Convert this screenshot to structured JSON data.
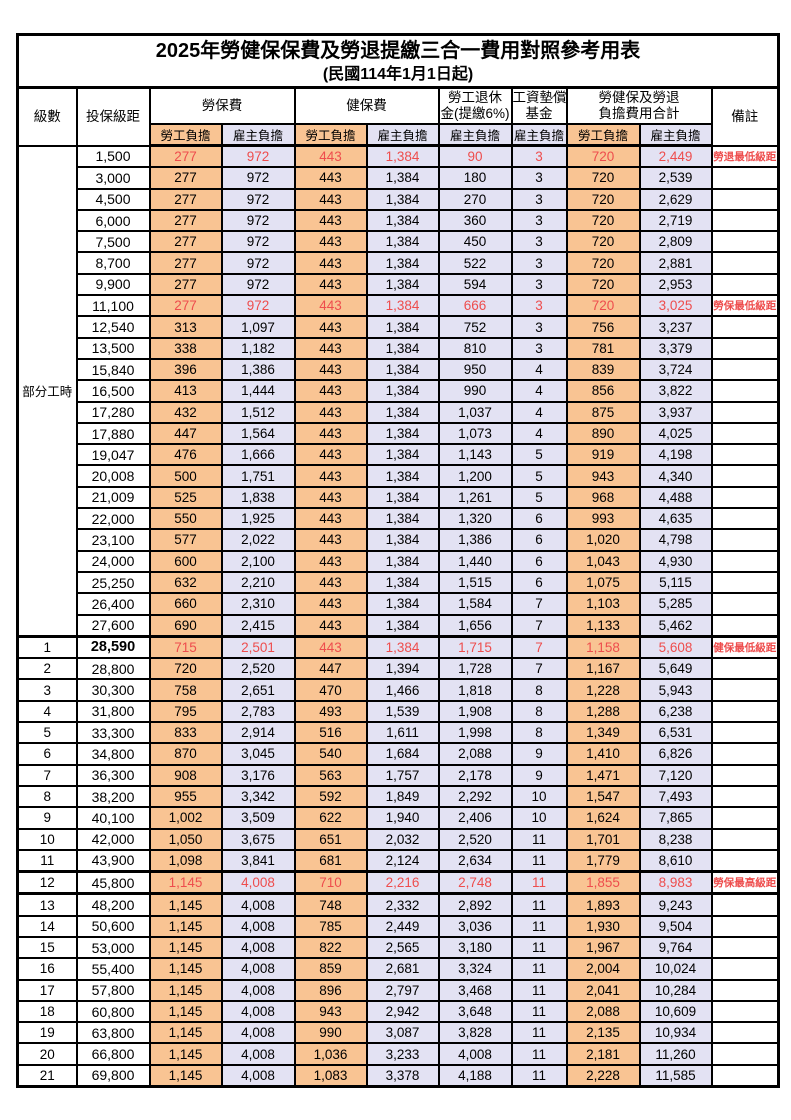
{
  "title": "2025年勞健保保費及勞退提繳三合一費用對照參考用表",
  "subtitle": "(民國114年1月1日起)",
  "header": {
    "level": "級數",
    "bracket": "投保級距",
    "labor_insurance": "勞保費",
    "health_insurance": "健保費",
    "pension_line1": "勞工退休",
    "pension_line2": "金(提繳6%)",
    "wage_fund_line1": "工資墊償",
    "wage_fund_line2": "基金",
    "total_line1": "勞健保及勞退",
    "total_line2": "負擔費用合計",
    "remark": "備註",
    "employee_label": "勞工負擔",
    "employer_label": "雇主負擔"
  },
  "part_time_label": "部分工時",
  "colors": {
    "employee_bg": "#F9C493",
    "employer_bg": "#E3E2F3",
    "highlight_red": "#EE4D4D",
    "border": "#000000"
  },
  "rows": [
    {
      "level": "",
      "bracket": "1,500",
      "values": [
        "277",
        "972",
        "443",
        "1,384",
        "90",
        "3",
        "720",
        "2,449"
      ],
      "note": "勞退最低級距",
      "red": true
    },
    {
      "level": "",
      "bracket": "3,000",
      "values": [
        "277",
        "972",
        "443",
        "1,384",
        "180",
        "3",
        "720",
        "2,539"
      ],
      "note": ""
    },
    {
      "level": "",
      "bracket": "4,500",
      "values": [
        "277",
        "972",
        "443",
        "1,384",
        "270",
        "3",
        "720",
        "2,629"
      ],
      "note": ""
    },
    {
      "level": "",
      "bracket": "6,000",
      "values": [
        "277",
        "972",
        "443",
        "1,384",
        "360",
        "3",
        "720",
        "2,719"
      ],
      "note": ""
    },
    {
      "level": "",
      "bracket": "7,500",
      "values": [
        "277",
        "972",
        "443",
        "1,384",
        "450",
        "3",
        "720",
        "2,809"
      ],
      "note": ""
    },
    {
      "level": "",
      "bracket": "8,700",
      "values": [
        "277",
        "972",
        "443",
        "1,384",
        "522",
        "3",
        "720",
        "2,881"
      ],
      "note": ""
    },
    {
      "level": "",
      "bracket": "9,900",
      "values": [
        "277",
        "972",
        "443",
        "1,384",
        "594",
        "3",
        "720",
        "2,953"
      ],
      "note": ""
    },
    {
      "level": "",
      "bracket": "11,100",
      "values": [
        "277",
        "972",
        "443",
        "1,384",
        "666",
        "3",
        "720",
        "3,025"
      ],
      "note": "勞保最低級距",
      "red": true
    },
    {
      "level": "",
      "bracket": "12,540",
      "values": [
        "313",
        "1,097",
        "443",
        "1,384",
        "752",
        "3",
        "756",
        "3,237"
      ],
      "note": ""
    },
    {
      "level": "",
      "bracket": "13,500",
      "values": [
        "338",
        "1,182",
        "443",
        "1,384",
        "810",
        "3",
        "781",
        "3,379"
      ],
      "note": ""
    },
    {
      "level": "",
      "bracket": "15,840",
      "values": [
        "396",
        "1,386",
        "443",
        "1,384",
        "950",
        "4",
        "839",
        "3,724"
      ],
      "note": ""
    },
    {
      "level": "",
      "bracket": "16,500",
      "values": [
        "413",
        "1,444",
        "443",
        "1,384",
        "990",
        "4",
        "856",
        "3,822"
      ],
      "note": ""
    },
    {
      "level": "",
      "bracket": "17,280",
      "values": [
        "432",
        "1,512",
        "443",
        "1,384",
        "1,037",
        "4",
        "875",
        "3,937"
      ],
      "note": ""
    },
    {
      "level": "",
      "bracket": "17,880",
      "values": [
        "447",
        "1,564",
        "443",
        "1,384",
        "1,073",
        "4",
        "890",
        "4,025"
      ],
      "note": ""
    },
    {
      "level": "",
      "bracket": "19,047",
      "values": [
        "476",
        "1,666",
        "443",
        "1,384",
        "1,143",
        "5",
        "919",
        "4,198"
      ],
      "note": ""
    },
    {
      "level": "",
      "bracket": "20,008",
      "values": [
        "500",
        "1,751",
        "443",
        "1,384",
        "1,200",
        "5",
        "943",
        "4,340"
      ],
      "note": ""
    },
    {
      "level": "",
      "bracket": "21,009",
      "values": [
        "525",
        "1,838",
        "443",
        "1,384",
        "1,261",
        "5",
        "968",
        "4,488"
      ],
      "note": ""
    },
    {
      "level": "",
      "bracket": "22,000",
      "values": [
        "550",
        "1,925",
        "443",
        "1,384",
        "1,320",
        "6",
        "993",
        "4,635"
      ],
      "note": ""
    },
    {
      "level": "",
      "bracket": "23,100",
      "values": [
        "577",
        "2,022",
        "443",
        "1,384",
        "1,386",
        "6",
        "1,020",
        "4,798"
      ],
      "note": ""
    },
    {
      "level": "",
      "bracket": "24,000",
      "values": [
        "600",
        "2,100",
        "443",
        "1,384",
        "1,440",
        "6",
        "1,043",
        "4,930"
      ],
      "note": ""
    },
    {
      "level": "",
      "bracket": "25,250",
      "values": [
        "632",
        "2,210",
        "443",
        "1,384",
        "1,515",
        "6",
        "1,075",
        "5,115"
      ],
      "note": ""
    },
    {
      "level": "",
      "bracket": "26,400",
      "values": [
        "660",
        "2,310",
        "443",
        "1,384",
        "1,584",
        "7",
        "1,103",
        "5,285"
      ],
      "note": ""
    },
    {
      "level": "",
      "bracket": "27,600",
      "values": [
        "690",
        "2,415",
        "443",
        "1,384",
        "1,656",
        "7",
        "1,133",
        "5,462"
      ],
      "note": ""
    },
    {
      "level": "1",
      "bracket": "28,590",
      "values": [
        "715",
        "2,501",
        "443",
        "1,384",
        "1,715",
        "7",
        "1,158",
        "5,608"
      ],
      "note": "健保最低級距",
      "red": true,
      "thick": "top",
      "bold_bracket": true
    },
    {
      "level": "2",
      "bracket": "28,800",
      "values": [
        "720",
        "2,520",
        "447",
        "1,394",
        "1,728",
        "7",
        "1,167",
        "5,649"
      ],
      "note": ""
    },
    {
      "level": "3",
      "bracket": "30,300",
      "values": [
        "758",
        "2,651",
        "470",
        "1,466",
        "1,818",
        "8",
        "1,228",
        "5,943"
      ],
      "note": ""
    },
    {
      "level": "4",
      "bracket": "31,800",
      "values": [
        "795",
        "2,783",
        "493",
        "1,539",
        "1,908",
        "8",
        "1,288",
        "6,238"
      ],
      "note": ""
    },
    {
      "level": "5",
      "bracket": "33,300",
      "values": [
        "833",
        "2,914",
        "516",
        "1,611",
        "1,998",
        "8",
        "1,349",
        "6,531"
      ],
      "note": ""
    },
    {
      "level": "6",
      "bracket": "34,800",
      "values": [
        "870",
        "3,045",
        "540",
        "1,684",
        "2,088",
        "9",
        "1,410",
        "6,826"
      ],
      "note": ""
    },
    {
      "level": "7",
      "bracket": "36,300",
      "values": [
        "908",
        "3,176",
        "563",
        "1,757",
        "2,178",
        "9",
        "1,471",
        "7,120"
      ],
      "note": ""
    },
    {
      "level": "8",
      "bracket": "38,200",
      "values": [
        "955",
        "3,342",
        "592",
        "1,849",
        "2,292",
        "10",
        "1,547",
        "7,493"
      ],
      "note": ""
    },
    {
      "level": "9",
      "bracket": "40,100",
      "values": [
        "1,002",
        "3,509",
        "622",
        "1,940",
        "2,406",
        "10",
        "1,624",
        "7,865"
      ],
      "note": ""
    },
    {
      "level": "10",
      "bracket": "42,000",
      "values": [
        "1,050",
        "3,675",
        "651",
        "2,032",
        "2,520",
        "11",
        "1,701",
        "8,238"
      ],
      "note": ""
    },
    {
      "level": "11",
      "bracket": "43,900",
      "values": [
        "1,098",
        "3,841",
        "681",
        "2,124",
        "2,634",
        "11",
        "1,779",
        "8,610"
      ],
      "note": ""
    },
    {
      "level": "12",
      "bracket": "45,800",
      "values": [
        "1,145",
        "4,008",
        "710",
        "2,216",
        "2,748",
        "11",
        "1,855",
        "8,983"
      ],
      "note": "勞保最高級距",
      "red": true,
      "thick": "both"
    },
    {
      "level": "13",
      "bracket": "48,200",
      "values": [
        "1,145",
        "4,008",
        "748",
        "2,332",
        "2,892",
        "11",
        "1,893",
        "9,243"
      ],
      "note": ""
    },
    {
      "level": "14",
      "bracket": "50,600",
      "values": [
        "1,145",
        "4,008",
        "785",
        "2,449",
        "3,036",
        "11",
        "1,930",
        "9,504"
      ],
      "note": ""
    },
    {
      "level": "15",
      "bracket": "53,000",
      "values": [
        "1,145",
        "4,008",
        "822",
        "2,565",
        "3,180",
        "11",
        "1,967",
        "9,764"
      ],
      "note": ""
    },
    {
      "level": "16",
      "bracket": "55,400",
      "values": [
        "1,145",
        "4,008",
        "859",
        "2,681",
        "3,324",
        "11",
        "2,004",
        "10,024"
      ],
      "note": ""
    },
    {
      "level": "17",
      "bracket": "57,800",
      "values": [
        "1,145",
        "4,008",
        "896",
        "2,797",
        "3,468",
        "11",
        "2,041",
        "10,284"
      ],
      "note": ""
    },
    {
      "level": "18",
      "bracket": "60,800",
      "values": [
        "1,145",
        "4,008",
        "943",
        "2,942",
        "3,648",
        "11",
        "2,088",
        "10,609"
      ],
      "note": ""
    },
    {
      "level": "19",
      "bracket": "63,800",
      "values": [
        "1,145",
        "4,008",
        "990",
        "3,087",
        "3,828",
        "11",
        "2,135",
        "10,934"
      ],
      "note": ""
    },
    {
      "level": "20",
      "bracket": "66,800",
      "values": [
        "1,145",
        "4,008",
        "1,036",
        "3,233",
        "4,008",
        "11",
        "2,181",
        "11,260"
      ],
      "note": ""
    },
    {
      "level": "21",
      "bracket": "69,800",
      "values": [
        "1,145",
        "4,008",
        "1,083",
        "3,378",
        "4,188",
        "11",
        "2,228",
        "11,585"
      ],
      "note": ""
    }
  ]
}
